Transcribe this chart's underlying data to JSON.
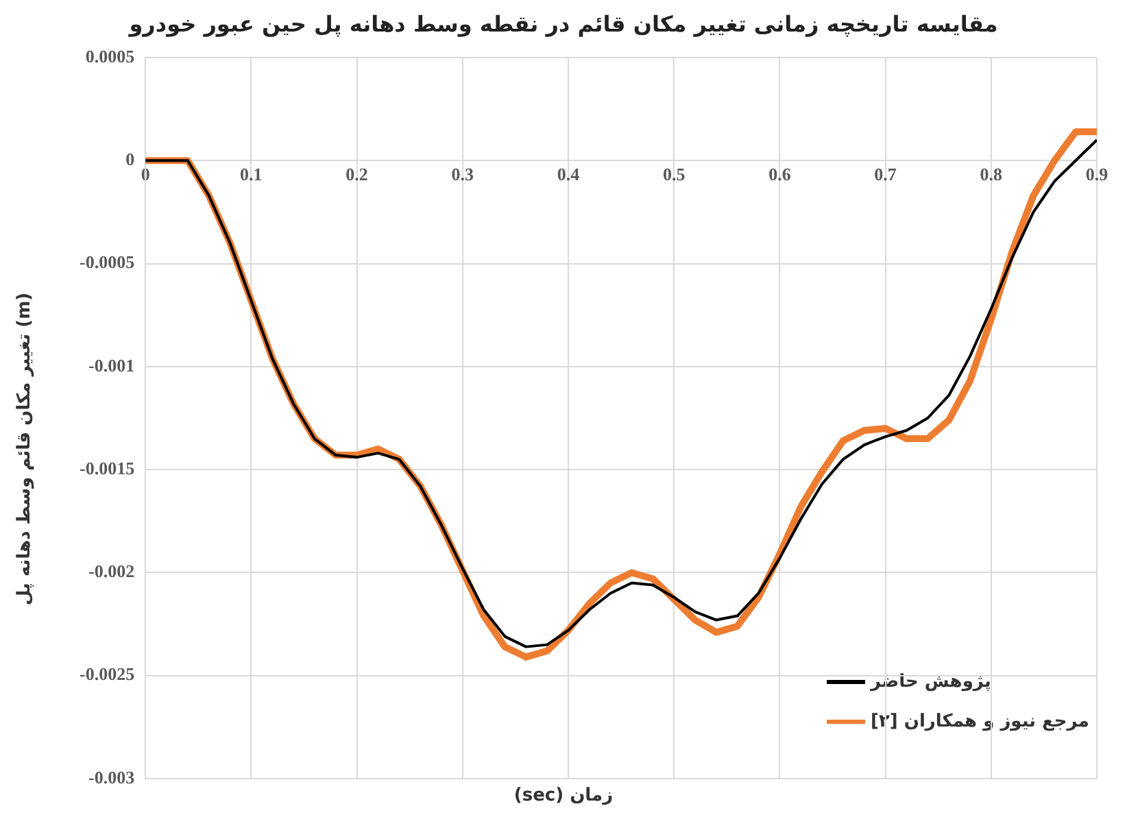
{
  "chart_data": {
    "type": "line",
    "title": "مقایسه تاریخچه زمانی تغییر مکان قائم در نقطه وسط دهانه پل حین عبور خودرو",
    "xlabel": "زمان (sec)",
    "ylabel": "تغییر مکان قائم وسط دهانه پل (m)",
    "x": [
      0,
      0.02,
      0.04,
      0.06,
      0.08,
      0.1,
      0.12,
      0.14,
      0.16,
      0.18,
      0.2,
      0.22,
      0.24,
      0.26,
      0.28,
      0.3,
      0.32,
      0.34,
      0.36,
      0.38,
      0.4,
      0.42,
      0.44,
      0.46,
      0.48,
      0.5,
      0.52,
      0.54,
      0.56,
      0.58,
      0.6,
      0.62,
      0.64,
      0.66,
      0.68,
      0.7,
      0.72,
      0.74,
      0.76,
      0.78,
      0.8,
      0.82,
      0.84,
      0.86,
      0.88,
      0.9
    ],
    "series": [
      {
        "name": "پژوهش حاضر",
        "color": "#000000",
        "values": [
          0,
          0,
          0,
          -0.00017,
          -0.0004,
          -0.00068,
          -0.00096,
          -0.00118,
          -0.00135,
          -0.00143,
          -0.00144,
          -0.00142,
          -0.00145,
          -0.00158,
          -0.00177,
          -0.00198,
          -0.00218,
          -0.00231,
          -0.00236,
          -0.00235,
          -0.00228,
          -0.00218,
          -0.0021,
          -0.00205,
          -0.00206,
          -0.00212,
          -0.00219,
          -0.00223,
          -0.00221,
          -0.0021,
          -0.00193,
          -0.00174,
          -0.00157,
          -0.00145,
          -0.00138,
          -0.00134,
          -0.00131,
          -0.00125,
          -0.00114,
          -0.00095,
          -0.00072,
          -0.00047,
          -0.00025,
          -0.0001,
          0,
          0.0001
        ]
      },
      {
        "name": "مرجع نیوز و همکاران [۲]",
        "color": "#ed7d31",
        "values": [
          0,
          0,
          0,
          -0.00017,
          -0.0004,
          -0.00068,
          -0.00096,
          -0.00118,
          -0.00135,
          -0.00143,
          -0.00143,
          -0.0014,
          -0.00145,
          -0.00158,
          -0.00177,
          -0.00199,
          -0.00221,
          -0.00236,
          -0.00241,
          -0.00238,
          -0.00228,
          -0.00215,
          -0.00205,
          -0.002,
          -0.00203,
          -0.00213,
          -0.00223,
          -0.00229,
          -0.00226,
          -0.00212,
          -0.00191,
          -0.00168,
          -0.00151,
          -0.00136,
          -0.00131,
          -0.0013,
          -0.00135,
          -0.00135,
          -0.00126,
          -0.00107,
          -0.00077,
          -0.00044,
          -0.00017,
          0,
          0.00014,
          0.00014
        ]
      }
    ],
    "xlim": [
      0,
      0.9
    ],
    "xticks": [
      0,
      0.1,
      0.2,
      0.3,
      0.4,
      0.5,
      0.6,
      0.7,
      0.8,
      0.9
    ],
    "ylim": [
      -0.003,
      0.0005
    ],
    "yticks": [
      -0.003,
      -0.0025,
      -0.002,
      -0.0015,
      -0.001,
      -0.0005,
      0,
      0.0005
    ],
    "grid": true,
    "legend": "bottom right",
    "marker": "none",
    "line_style": "solid"
  }
}
